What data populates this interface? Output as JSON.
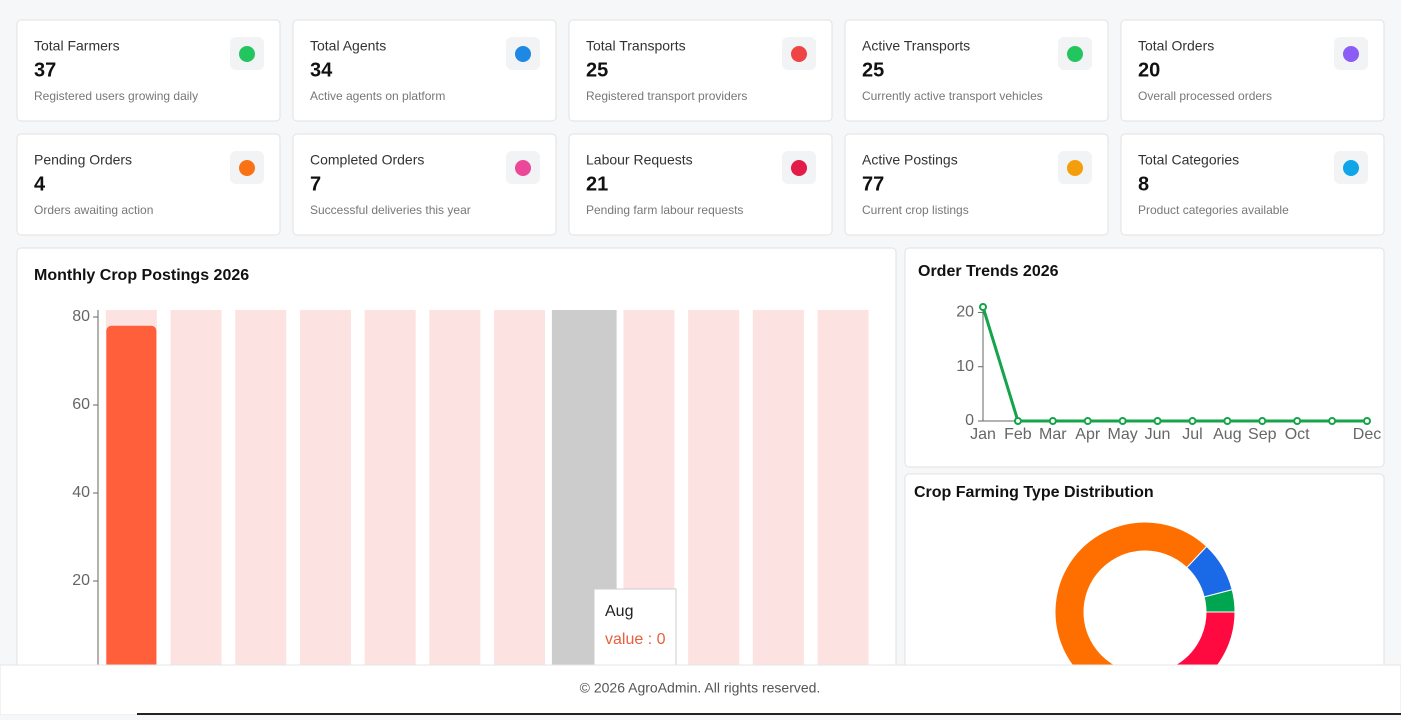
{
  "cards": [
    {
      "title": "Total Farmers",
      "value": 37,
      "subtitle": "Registered users growing daily"
    },
    {
      "title": "Total Agents",
      "value": 34,
      "subtitle": "Active agents on platform"
    },
    {
      "title": "Total Transports",
      "value": 25,
      "subtitle": "Registered transport providers"
    },
    {
      "title": "Active Transports",
      "value": 25,
      "subtitle": "Currently active transport vehicles"
    },
    {
      "title": "Total Orders",
      "value": 20,
      "subtitle": "Overall processed orders"
    },
    {
      "title": "Pending Orders",
      "value": 4,
      "subtitle": "Orders awaiting action"
    },
    {
      "title": "Completed Orders",
      "value": 7,
      "subtitle": "Successful deliveries this year"
    },
    {
      "title": "Labour Requests",
      "value": 21,
      "subtitle": "Pending farm labour requests"
    },
    {
      "title": "Active Postings",
      "value": 77,
      "subtitle": "Current crop listings"
    },
    {
      "title": "Total Categories",
      "value": 8,
      "subtitle": "Product categories available"
    }
  ],
  "chart_data": [
    {
      "type": "bar",
      "title": "Monthly Crop Postings 2026",
      "categories": [
        null,
        null,
        null,
        null,
        null,
        null,
        null,
        null,
        null,
        null,
        null,
        null
      ],
      "values": [
        78,
        0,
        0,
        0,
        0,
        0,
        0,
        0,
        0,
        0,
        0,
        0
      ],
      "color": "#ff5f3a",
      "ylim": [
        0,
        80
      ],
      "yticks": [
        20,
        40,
        60,
        80
      ],
      "tooltip": {
        "title": "Aug",
        "text": "value : 0"
      }
    },
    {
      "type": "line",
      "title": "Order Trends 2026",
      "categories": [
        "Jan",
        "Feb",
        "Mar",
        "Apr",
        "May",
        "Jun",
        "Jul",
        "Aug",
        "Sep",
        "Oct",
        null,
        "Dec"
      ],
      "values": [
        21,
        0,
        0,
        0,
        0,
        0,
        0,
        0,
        0,
        0,
        0,
        0
      ],
      "color": "#16a34a",
      "ylim": [
        0,
        21
      ],
      "yticks": [
        0,
        10,
        20
      ]
    },
    {
      "type": "pie",
      "title": "Crop Farming Type Distribution",
      "values": [
        4,
        9,
        56,
        31
      ],
      "colors": [
        "#00a550",
        "#1a6ae8",
        "#ff6f00",
        "#ff0a40"
      ]
    }
  ],
  "footer": "© 2026 AgroAdmin. All rights reserved."
}
